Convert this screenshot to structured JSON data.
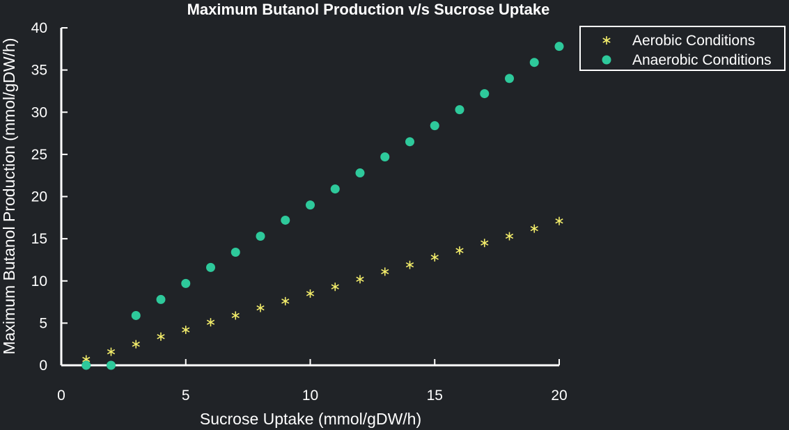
{
  "colors": {
    "background": "#202327",
    "axes": "#ffffff",
    "aerobic": "#f4ee6b",
    "anaerobic": "#2ec99b"
  },
  "chart_data": {
    "type": "scatter",
    "title": "Maximum Butanol Production v/s Sucrose Uptake",
    "xlabel": "Sucrose Uptake (mmol/gDW/h)",
    "ylabel": "Maximum Butanol Production (mmol/gDW/h)",
    "xlim": [
      0,
      20
    ],
    "ylim": [
      0,
      40
    ],
    "xticks": [
      0,
      5,
      10,
      15,
      20
    ],
    "yticks": [
      0,
      5,
      10,
      15,
      20,
      25,
      30,
      35,
      40
    ],
    "grid": false,
    "legend_position": "top-right, outside plot",
    "series": [
      {
        "name": "Aerobic Conditions",
        "marker": "asterisk",
        "color": "#f4ee6b",
        "x": [
          1,
          2,
          3,
          4,
          5,
          6,
          7,
          8,
          9,
          10,
          11,
          12,
          13,
          14,
          15,
          16,
          17,
          18,
          19,
          20
        ],
        "y": [
          0.7,
          1.6,
          2.5,
          3.4,
          4.2,
          5.1,
          5.9,
          6.8,
          7.6,
          8.5,
          9.3,
          10.2,
          11.1,
          11.9,
          12.8,
          13.6,
          14.5,
          15.3,
          16.2,
          17.1
        ]
      },
      {
        "name": "Anaerobic Conditions",
        "marker": "circle",
        "color": "#2ec99b",
        "x": [
          1,
          2,
          3,
          4,
          5,
          6,
          7,
          8,
          9,
          10,
          11,
          12,
          13,
          14,
          15,
          16,
          17,
          18,
          19,
          20
        ],
        "y": [
          0,
          0,
          5.9,
          7.8,
          9.7,
          11.6,
          13.4,
          15.3,
          17.2,
          19.0,
          20.9,
          22.8,
          24.7,
          26.5,
          28.4,
          30.3,
          32.2,
          34.0,
          35.9,
          37.8
        ]
      }
    ]
  }
}
